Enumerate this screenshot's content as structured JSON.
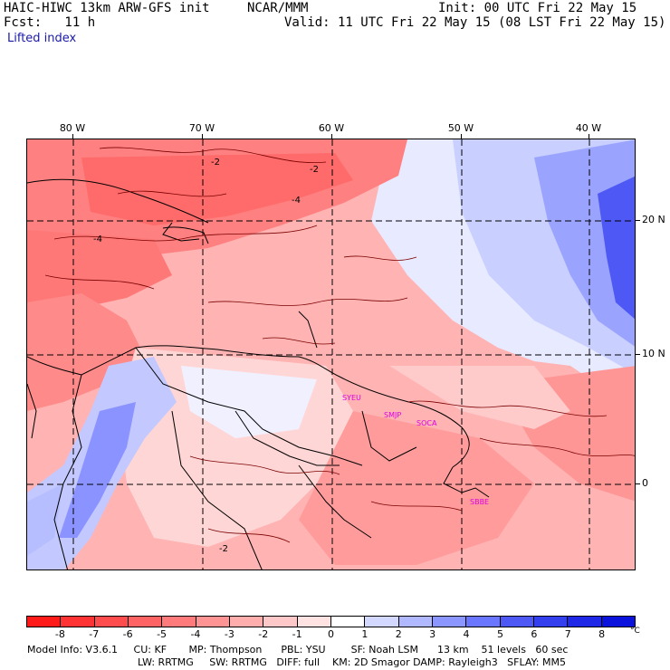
{
  "header": {
    "model": "HAIC-HIWC 13km ARW-GFS init",
    "org": "NCAR/MMM",
    "init": "Init: 00 UTC Fri 22 May 15",
    "fcst": "Fcst:   11 h",
    "valid": "Valid: 11 UTC Fri 22 May 15 (08 LST Fri 22 May 15)",
    "field": "Lifted index"
  },
  "axes": {
    "lon_labels": [
      "80 W",
      "70 W",
      "60 W",
      "50 W",
      "40 W"
    ],
    "lat_labels": [
      "20 N",
      "10 N",
      "0"
    ]
  },
  "stations": [
    "SYEU",
    "SMJP",
    "SOCA",
    "SBBE"
  ],
  "colorbar": {
    "labels": [
      "-8",
      "-7",
      "-6",
      "-5",
      "-4",
      "-3",
      "-2",
      "-1",
      "0",
      "1",
      "2",
      "3",
      "4",
      "5",
      "6",
      "7",
      "8"
    ],
    "unit": "°C",
    "colors": [
      "#ff1a1a",
      "#ff3333",
      "#ff4d4d",
      "#ff6363",
      "#ff7a7a",
      "#ff9494",
      "#ffadad",
      "#ffc8c8",
      "#ffe2e2",
      "#ffffff",
      "#d2d8ff",
      "#b0b8ff",
      "#8c96ff",
      "#6b76ff",
      "#4e58f5",
      "#3440ee",
      "#1f28e6",
      "#0b12dc"
    ]
  },
  "footer": {
    "line1": "Model Info: V3.6.1     CU: KF       MP: Thompson      PBL: YSU        SF: Noah LSM      13 km    51 levels   60 sec",
    "line2": "LW: RRTMG     SW: RRTMG   DIFF: full    KM: 2D Smagor DAMP: Rayleigh3   SFLAY: MM5"
  }
}
